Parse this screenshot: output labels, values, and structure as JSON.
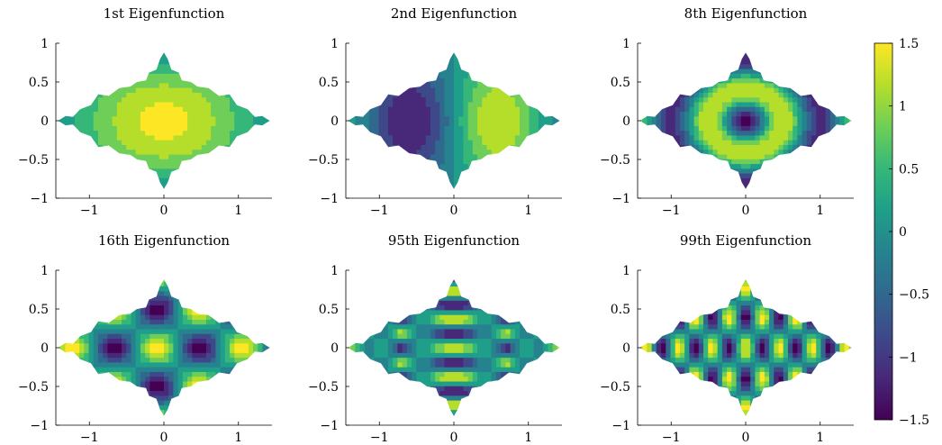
{
  "chart_data": {
    "type": "heatmap",
    "domain_shape": "fractal snowflake-like region (filled), axes equal",
    "colormap": "viridis",
    "colorbar": {
      "min": -1.5,
      "max": 1.5,
      "ticks": [
        1.5,
        1,
        0.5,
        0,
        -0.5,
        -1,
        -1.5
      ],
      "tick_labels": [
        "1.5",
        "1",
        "0.5",
        "0",
        "−0.5",
        "−1",
        "−1.5"
      ],
      "colors": [
        "#440154",
        "#482878",
        "#3e4989",
        "#31688e",
        "#26828e",
        "#1f9e89",
        "#35b779",
        "#6ece58",
        "#b5de2b",
        "#fde725"
      ]
    },
    "panels": [
      {
        "title": "1st Eigenfunction",
        "xlim": [
          -1.45,
          1.45
        ],
        "ylim": [
          -1,
          1
        ],
        "xticks": [
          "−1",
          "0",
          "1"
        ],
        "yticks": [
          "1",
          "0.5",
          "0",
          "−0.5",
          "−1"
        ]
      },
      {
        "title": "2nd Eigenfunction",
        "xlim": [
          -1.45,
          1.45
        ],
        "ylim": [
          -1,
          1
        ],
        "xticks": [
          "−1",
          "0",
          "1"
        ],
        "yticks": [
          "1",
          "0.5",
          "0",
          "−0.5",
          "−1"
        ]
      },
      {
        "title": "8th Eigenfunction",
        "xlim": [
          -1.45,
          1.45
        ],
        "ylim": [
          -1,
          1
        ],
        "xticks": [
          "−1",
          "0",
          "1"
        ],
        "yticks": [
          "1",
          "0.5",
          "0",
          "−0.5",
          "−1"
        ]
      },
      {
        "title": "16th Eigenfunction",
        "xlim": [
          -1.45,
          1.45
        ],
        "ylim": [
          -1,
          1
        ],
        "xticks": [
          "−1",
          "0",
          "1"
        ],
        "yticks": [
          "1",
          "0.5",
          "0",
          "−0.5",
          "−1"
        ]
      },
      {
        "title": "95th Eigenfunction",
        "xlim": [
          -1.45,
          1.45
        ],
        "ylim": [
          -1,
          1
        ],
        "xticks": [
          "−1",
          "0",
          "1"
        ],
        "yticks": [
          "1",
          "0.5",
          "0",
          "−0.5",
          "−1"
        ]
      },
      {
        "title": "99th Eigenfunction",
        "xlim": [
          -1.45,
          1.45
        ],
        "ylim": [
          -1,
          1
        ],
        "xticks": [
          "−1",
          "0",
          "1"
        ],
        "yticks": [
          "1",
          "0.5",
          "0",
          "−0.5",
          "−1"
        ]
      }
    ]
  }
}
